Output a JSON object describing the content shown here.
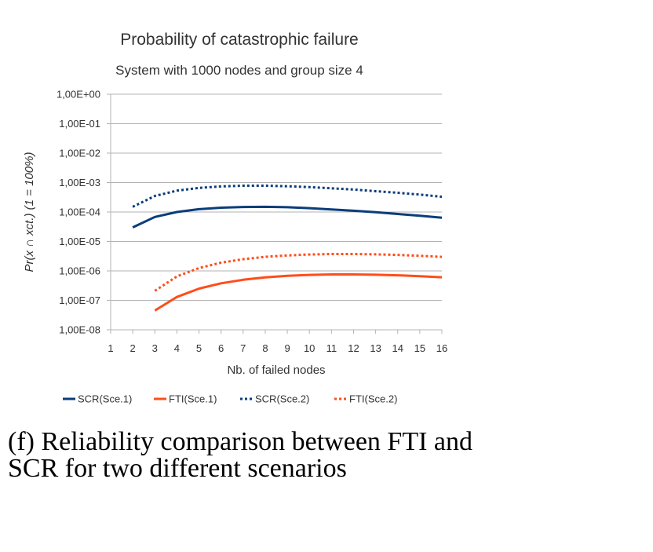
{
  "chart_data": {
    "type": "line",
    "title": "Probability of catastrophic failure",
    "subtitle": "System with 1000 nodes and group size 4",
    "xlabel": "Nb. of failed nodes",
    "ylabel": "Pr(x ∩ xct.) (1 = 100%)",
    "x_ticks": [
      "1",
      "2",
      "3",
      "4",
      "5",
      "6",
      "7",
      "8",
      "9",
      "10",
      "11",
      "12",
      "13",
      "14",
      "15",
      "16"
    ],
    "xlim": [
      1,
      16
    ],
    "y_scale": "log",
    "y_ticks": [
      {
        "value": 1e-08,
        "label": "1,00E-08"
      },
      {
        "value": 1e-07,
        "label": "1,00E-07"
      },
      {
        "value": 1e-06,
        "label": "1,00E-06"
      },
      {
        "value": 1e-05,
        "label": "1,00E-05"
      },
      {
        "value": 0.0001,
        "label": "1,00E-04"
      },
      {
        "value": 0.001,
        "label": "1,00E-03"
      },
      {
        "value": 0.01,
        "label": "1,00E-02"
      },
      {
        "value": 0.1,
        "label": "1,00E-01"
      },
      {
        "value": 1,
        "label": "1,00E+00"
      }
    ],
    "ylim": [
      1e-08,
      1
    ],
    "grid": "horizontal",
    "legend_position": "bottom",
    "series": [
      {
        "name": "SCR(Sce.1)",
        "color": "#0a3d7a",
        "style": "solid",
        "x": [
          2,
          3,
          4,
          5,
          6,
          7,
          8,
          9,
          10,
          11,
          12,
          13,
          14,
          15,
          16
        ],
        "y": [
          3e-05,
          6.8e-05,
          0.0001,
          0.000125,
          0.00014,
          0.000148,
          0.00015,
          0.000145,
          0.000135,
          0.000122,
          0.00011,
          9.8e-05,
          8.6e-05,
          7.5e-05,
          6.4e-05
        ]
      },
      {
        "name": "FTI(Sce.1)",
        "color": "#ff4d1a",
        "style": "solid",
        "x": [
          3,
          4,
          5,
          6,
          7,
          8,
          9,
          10,
          11,
          12,
          13,
          14,
          15,
          16
        ],
        "y": [
          4.5e-08,
          1.3e-07,
          2.5e-07,
          3.8e-07,
          5e-07,
          6e-07,
          6.8e-07,
          7.3e-07,
          7.6e-07,
          7.6e-07,
          7.4e-07,
          7.1e-07,
          6.6e-07,
          6.1e-07
        ]
      },
      {
        "name": "SCR(Sce.2)",
        "color": "#0a3d7a",
        "style": "dotted",
        "x": [
          2,
          3,
          4,
          5,
          6,
          7,
          8,
          9,
          10,
          11,
          12,
          13,
          14,
          15,
          16
        ],
        "y": [
          0.00015,
          0.00035,
          0.00053,
          0.00066,
          0.00074,
          0.00078,
          0.00078,
          0.00075,
          0.0007,
          0.00064,
          0.00058,
          0.00051,
          0.00045,
          0.00039,
          0.00033
        ]
      },
      {
        "name": "FTI(Sce.2)",
        "color": "#ff4d1a",
        "style": "dotted",
        "x": [
          3,
          4,
          5,
          6,
          7,
          8,
          9,
          10,
          11,
          12,
          13,
          14,
          15,
          16
        ],
        "y": [
          2.1e-07,
          6.5e-07,
          1.25e-06,
          1.9e-06,
          2.5e-06,
          3e-06,
          3.35e-06,
          3.6e-06,
          3.75e-06,
          3.75e-06,
          3.65e-06,
          3.5e-06,
          3.25e-06,
          3e-06
        ]
      }
    ]
  },
  "caption": "(f) Reliability comparison between FTI and SCR for two different scenarios"
}
